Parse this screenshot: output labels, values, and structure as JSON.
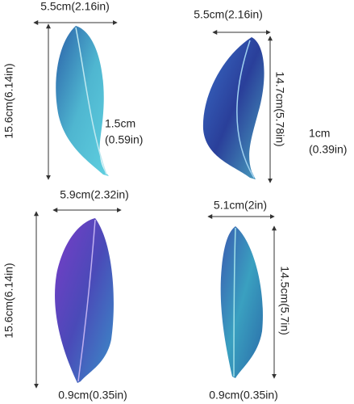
{
  "feathers": [
    {
      "width": "5.5cm(2.16in)",
      "height": "15.6cm(6.14in)",
      "thickness": [
        "1.5cm",
        "(0.59in)"
      ]
    },
    {
      "width": "5.5cm(2.16in)",
      "height": "14.7cm(5.78in)",
      "thickness": [
        "1cm",
        "(0.39in)"
      ]
    },
    {
      "width": "5.9cm(2.32in)",
      "height": "15.6cm(6.14in)",
      "thickness": [
        "0.9cm(0.35in)"
      ]
    },
    {
      "width": "5.1cm(2in)",
      "height": "14.5cm(5.7in)",
      "thickness": [
        "0.9cm(0.35in)"
      ]
    }
  ]
}
